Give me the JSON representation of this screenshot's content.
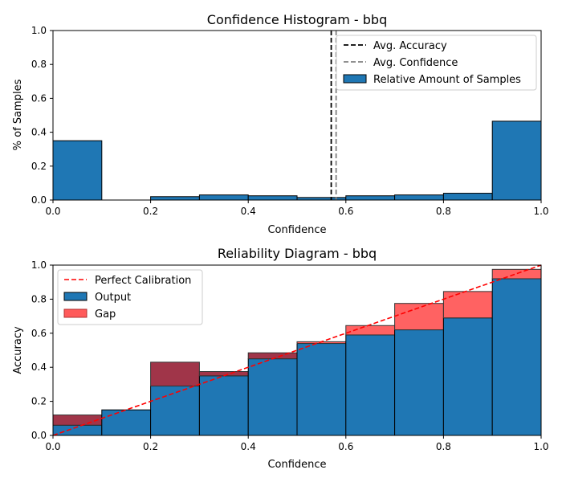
{
  "chart_data": [
    {
      "type": "bar",
      "title": "Confidence Histogram - bbq",
      "xlabel": "Confidence",
      "ylabel": "% of Samples",
      "xlim": [
        0,
        1
      ],
      "ylim": [
        0,
        1
      ],
      "xticks": [
        "0.0",
        "0.2",
        "0.4",
        "0.6",
        "0.8",
        "1.0"
      ],
      "yticks": [
        "0.0",
        "0.2",
        "0.4",
        "0.6",
        "0.8",
        "1.0"
      ],
      "bins": [
        0.0,
        0.1,
        0.2,
        0.3,
        0.4,
        0.5,
        0.6,
        0.7,
        0.8,
        0.9
      ],
      "bin_width": 0.1,
      "values": [
        0.35,
        0.0,
        0.02,
        0.03,
        0.025,
        0.015,
        0.025,
        0.03,
        0.04,
        0.465
      ],
      "avg_accuracy": 0.57,
      "avg_confidence": 0.58,
      "legend": {
        "position": "top-right",
        "entries": [
          "Avg. Accuracy",
          "Avg. Confidence",
          "Relative Amount of Samples"
        ]
      },
      "colors": {
        "bar": "#1f77b4",
        "accuracy_line": "#000000",
        "confidence_line": "#808080"
      }
    },
    {
      "type": "bar",
      "title": "Reliability Diagram - bbq",
      "xlabel": "Confidence",
      "ylabel": "Accuracy",
      "xlim": [
        0,
        1
      ],
      "ylim": [
        0,
        1
      ],
      "xticks": [
        "0.0",
        "0.2",
        "0.4",
        "0.6",
        "0.8",
        "1.0"
      ],
      "yticks": [
        "0.0",
        "0.2",
        "0.4",
        "0.6",
        "0.8",
        "1.0"
      ],
      "bins": [
        0.0,
        0.1,
        0.2,
        0.3,
        0.4,
        0.5,
        0.6,
        0.7,
        0.8,
        0.9
      ],
      "bin_width": 0.1,
      "output": [
        0.06,
        0.15,
        0.29,
        0.35,
        0.45,
        0.54,
        0.59,
        0.62,
        0.69,
        0.92
      ],
      "gap_top": [
        0.12,
        0.15,
        0.43,
        0.375,
        0.485,
        0.55,
        0.645,
        0.775,
        0.845,
        0.975
      ],
      "legend": {
        "position": "top-left",
        "entries": [
          "Perfect Calibration",
          "Output",
          "Gap"
        ]
      },
      "colors": {
        "output": "#1f77b4",
        "gap": "#ff5a5a",
        "gap_overlap": "#9b2a3f",
        "perfect_line": "#ff0000"
      }
    }
  ]
}
